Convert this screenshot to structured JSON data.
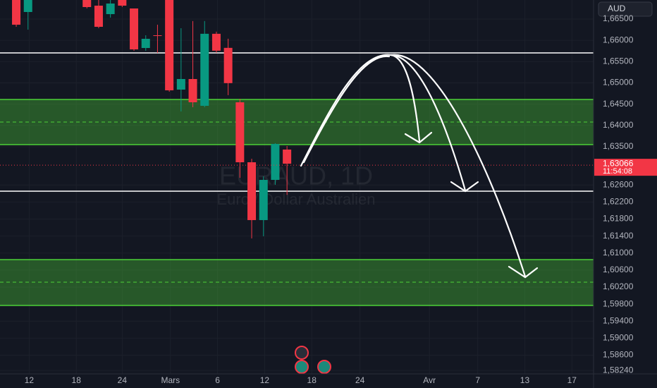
{
  "chart_data": {
    "type": "candlestick",
    "currency": "AUD",
    "watermark_symbol": "EURAUD, 1D",
    "watermark_name": "Euro / Dollar Australien",
    "up_color": "#089981",
    "down_color": "#f23645",
    "grid": true,
    "x": [
      0,
      1,
      6,
      7,
      8,
      9,
      10,
      11,
      12,
      13,
      14,
      15,
      16,
      17,
      18,
      19,
      20,
      21,
      22,
      23
    ],
    "open": [
      1.67,
      1.66666,
      1.6712,
      1.66815,
      1.66616,
      1.67,
      1.66749,
      1.6582,
      1.66119,
      1.6702,
      1.64842,
      1.65091,
      1.64461,
      1.66154,
      1.65823,
      1.64544,
      1.63134,
      1.61775,
      1.6272,
      1.63433
    ],
    "high": [
      1.671,
      1.6712,
      1.672,
      1.66948,
      1.66948,
      1.6705,
      1.66749,
      1.66119,
      1.66367,
      1.671,
      1.66285,
      1.66453,
      1.66453,
      1.66204,
      1.66038,
      1.64626,
      1.63217,
      1.62803,
      1.63582,
      1.63516
    ],
    "low": [
      1.66318,
      1.66251,
      1.6675,
      1.66285,
      1.66533,
      1.66782,
      1.65754,
      1.65754,
      1.65704,
      1.64792,
      1.64328,
      1.64428,
      1.64428,
      1.65707,
      1.64712,
      1.6277,
      1.61344,
      1.61394,
      1.62604,
      1.62369
    ],
    "close": [
      1.66367,
      1.6705,
      1.66782,
      1.66318,
      1.66865,
      1.66815,
      1.65787,
      1.66036,
      1.66102,
      1.64825,
      1.65091,
      1.64544,
      1.66154,
      1.65757,
      1.64994,
      1.63134,
      1.61775,
      1.6272,
      1.63565,
      1.63101
    ],
    "xlim": [
      -1.38,
      49.04
    ],
    "xticks": [
      {
        "value": 1.1,
        "label": "12"
      },
      {
        "value": 5.1,
        "label": "18"
      },
      {
        "value": 9.0,
        "label": "24"
      },
      {
        "value": 13.1,
        "label": "Mars"
      },
      {
        "value": 17.1,
        "label": "6"
      },
      {
        "value": 21.1,
        "label": "12"
      },
      {
        "value": 25.1,
        "label": "18"
      },
      {
        "value": 29.2,
        "label": "24"
      },
      {
        "value": 35.1,
        "label": "Avr"
      },
      {
        "value": 39.2,
        "label": "7"
      },
      {
        "value": 43.2,
        "label": "13"
      },
      {
        "value": 47.2,
        "label": "17"
      }
    ],
    "ylim": [
      1.5816,
      1.66948
    ],
    "yticks": [
      {
        "value": 1.665,
        "label": "1,66500"
      },
      {
        "value": 1.66,
        "label": "1,66000"
      },
      {
        "value": 1.655,
        "label": "1,65500"
      },
      {
        "value": 1.65,
        "label": "1,65000"
      },
      {
        "value": 1.645,
        "label": "1,64500"
      },
      {
        "value": 1.64,
        "label": "1,64000"
      },
      {
        "value": 1.635,
        "label": "1,63500"
      },
      {
        "value": 1.626,
        "label": "1,62600"
      },
      {
        "value": 1.622,
        "label": "1,62200"
      },
      {
        "value": 1.618,
        "label": "1,61800"
      },
      {
        "value": 1.614,
        "label": "1,61400"
      },
      {
        "value": 1.61,
        "label": "1,61000"
      },
      {
        "value": 1.606,
        "label": "1,60600"
      },
      {
        "value": 1.602,
        "label": "1,60200"
      },
      {
        "value": 1.598,
        "label": "1,59800"
      },
      {
        "value": 1.594,
        "label": "1,59400"
      },
      {
        "value": 1.59,
        "label": "1,59000"
      },
      {
        "value": 1.586,
        "label": "1,58600"
      },
      {
        "value": 1.5824,
        "label": "1,58240"
      }
    ],
    "levels": [
      1.65704,
      1.62455
    ],
    "level_color": "#ffffff",
    "zones": [
      {
        "high": 1.6461,
        "low": 1.63549,
        "mid": 1.64079
      },
      {
        "high": 1.60846,
        "low": 1.59769,
        "mid": 1.60316
      }
    ],
    "zone_color": "#4cd137",
    "last_price": {
      "value": 1.63066,
      "label": "1,63066"
    },
    "countdown": "11:54:08"
  }
}
